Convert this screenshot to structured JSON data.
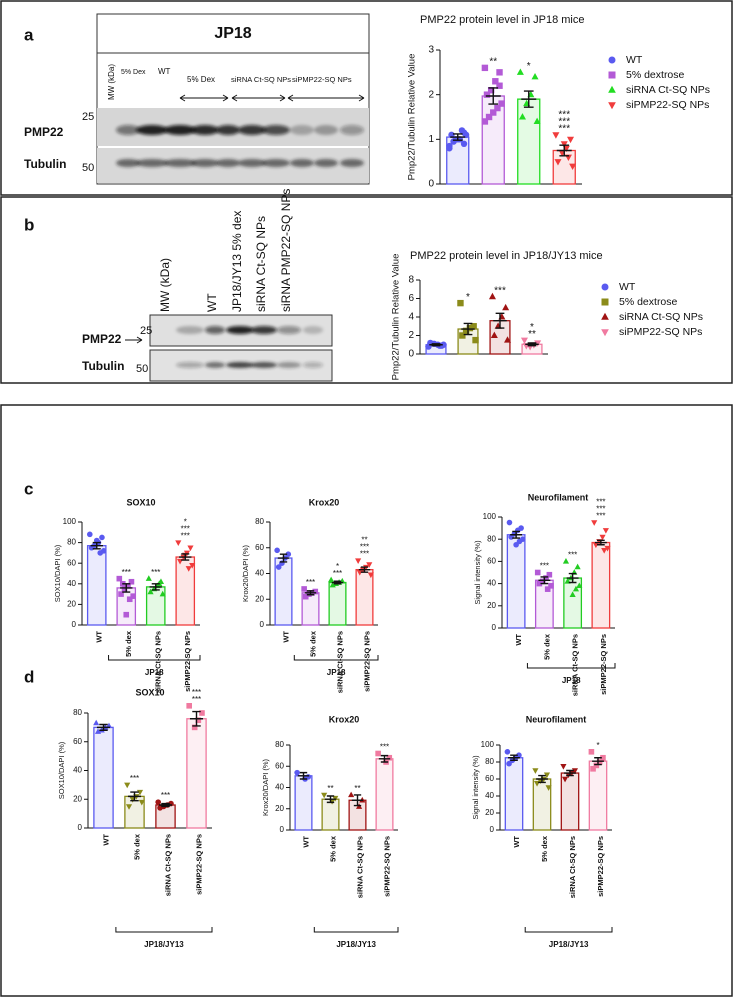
{
  "panels": [
    "a",
    "b",
    "c",
    "d"
  ],
  "blot_a": {
    "title": "JP18",
    "mw": "MW (kDa)",
    "lanes": [
      "5% Dex",
      "WT",
      "5% Dex",
      "siRNA Ct-SQ NPs",
      "siPMP22-SQ NPs"
    ],
    "rows": [
      "PMP22",
      "Tubulin"
    ],
    "markers": [
      "25",
      "50"
    ]
  },
  "blot_b": {
    "lanes": [
      "MW (kDa)",
      "WT",
      "JP18/JY13 5% dex",
      "siRNA Ct-SQ NPs",
      "siRNA PMP22-SQ NPs"
    ],
    "rows": [
      "PMP22",
      "Tubulin"
    ],
    "markers": [
      "25",
      "50"
    ]
  },
  "chart_data": [
    {
      "type": "bar",
      "title": "PMP22 protein level in JP18 mice",
      "ylabel": "Pmp22/Tubulin Relative Value",
      "legend": true,
      "categories": [
        "WT",
        "5% dextrose",
        "siRNA Ct-SQ NPs",
        "siPMP22-SQ NPs"
      ],
      "colors": [
        "#5a5af0",
        "#b35ad6",
        "#22dd22",
        "#f03c3c"
      ],
      "markers": [
        "circle",
        "square",
        "triangle",
        "down"
      ],
      "values": [
        1.05,
        1.97,
        1.9,
        0.75
      ],
      "errors": [
        0.07,
        0.18,
        0.18,
        0.12
      ],
      "points": [
        [
          0.8,
          0.9,
          1.0,
          1.0,
          1.1,
          1.1,
          1.2,
          1.0,
          0.95,
          0.85,
          1.15
        ],
        [
          2.6,
          2.5,
          2.3,
          2.1,
          2.0,
          1.8,
          1.7,
          1.6,
          1.5,
          1.4,
          2.2
        ],
        [
          2.5,
          2.4,
          2.0,
          1.8,
          1.5,
          1.4
        ],
        [
          1.1,
          1.0,
          0.8,
          0.7,
          0.5,
          0.4,
          0.6,
          0.9
        ]
      ],
      "stars": [
        [],
        [
          {
            "label": "**",
            "color": "#5a5af0"
          }
        ],
        [
          {
            "label": "*",
            "color": "#5a5af0"
          }
        ],
        [
          {
            "label": "***",
            "color": "#5a5af0"
          },
          {
            "label": "***",
            "color": "#22dd22"
          },
          {
            "label": "***",
            "color": "#b35ad6"
          }
        ]
      ],
      "ylim": [
        0,
        3
      ],
      "yticks": [
        0,
        1,
        2,
        3
      ]
    },
    {
      "type": "bar",
      "title": "PMP22 protein level in JP18/JY13 mice",
      "ylabel": "Pmp22/Tubulin Relative Value",
      "legend": true,
      "categories": [
        "WT",
        "5% dextrose",
        "siRNA Ct-SQ NPs",
        "siPMP22-SQ NPs"
      ],
      "colors": [
        "#5a5af0",
        "#8b8b1a",
        "#a01414",
        "#f07aa0"
      ],
      "markers": [
        "circle",
        "square",
        "triangle",
        "down"
      ],
      "values": [
        1.0,
        2.7,
        3.6,
        1.05
      ],
      "errors": [
        0.1,
        0.6,
        0.8,
        0.15
      ],
      "points": [
        [
          0.8,
          0.9,
          1.0,
          1.1,
          1.2,
          1.0,
          0.9
        ],
        [
          5.5,
          3.0,
          2.8,
          2.5,
          2.0,
          1.5
        ],
        [
          6.2,
          5.0,
          4.0,
          3.0,
          2.0,
          1.5
        ],
        [
          1.5,
          1.2,
          1.0,
          0.8,
          0.9
        ]
      ],
      "stars": [
        [],
        [
          {
            "label": "*",
            "color": "#222222"
          }
        ],
        [
          {
            "label": "***",
            "color": "#1a1a70"
          }
        ],
        [
          {
            "label": "**",
            "color": "#a01414"
          },
          {
            "label": "*",
            "color": "#22aa22"
          }
        ]
      ],
      "ylim": [
        0,
        8
      ],
      "yticks": [
        0,
        2,
        4,
        6,
        8
      ]
    },
    {
      "type": "bar",
      "title": "SOX10",
      "ylabel": "SOX10/DAPI (%)",
      "group": "JP18",
      "categories": [
        "WT",
        "5% dex",
        "siRNA Ct-SQ NPs",
        "siPMP22-SQ NPs"
      ],
      "colors": [
        "#5a5af0",
        "#b35ad6",
        "#22cc22",
        "#f03c3c"
      ],
      "markers": [
        "circle",
        "square",
        "triangle",
        "down"
      ],
      "values": [
        77,
        36,
        37,
        66
      ],
      "errors": [
        3,
        4,
        3,
        3
      ],
      "points": [
        [
          88,
          85,
          80,
          78,
          75,
          72,
          70,
          82,
          76
        ],
        [
          45,
          42,
          38,
          35,
          30,
          28,
          25,
          10,
          40
        ],
        [
          45,
          42,
          38,
          35,
          32,
          30,
          40
        ],
        [
          80,
          75,
          70,
          66,
          62,
          58,
          55,
          68
        ]
      ],
      "stars": [
        [],
        [
          {
            "label": "***",
            "color": "#5a5af0"
          }
        ],
        [
          {
            "label": "***",
            "color": "#5a5af0"
          }
        ],
        [
          {
            "label": "***",
            "color": "#5a5af0"
          },
          {
            "label": "***",
            "color": "#22cc22"
          },
          {
            "label": "*",
            "color": "#b35ad6"
          }
        ]
      ],
      "ylim": [
        0,
        100
      ],
      "yticks": [
        0,
        20,
        40,
        60,
        80,
        100
      ]
    },
    {
      "type": "bar",
      "title": "Krox20",
      "ylabel": "Krox20/DAPI (%)",
      "group": "JP18",
      "categories": [
        "WT",
        "5% dex",
        "siRNA Ct-SQ NPs",
        "siPMP22-SQ NPs"
      ],
      "colors": [
        "#5a5af0",
        "#b35ad6",
        "#22cc22",
        "#f03c3c"
      ],
      "markers": [
        "circle",
        "square",
        "triangle",
        "down"
      ],
      "values": [
        52,
        25,
        33,
        43
      ],
      "errors": [
        3,
        1.5,
        1,
        2
      ],
      "points": [
        [
          58,
          55,
          52,
          48,
          45
        ],
        [
          28,
          26,
          25,
          24,
          22
        ],
        [
          35,
          34,
          33,
          32,
          31
        ],
        [
          50,
          47,
          45,
          43,
          41,
          39
        ]
      ],
      "stars": [
        [],
        [
          {
            "label": "***",
            "color": "#5a5af0"
          }
        ],
        [
          {
            "label": "***",
            "color": "#5a5af0"
          },
          {
            "label": "*",
            "color": "#b35ad6"
          }
        ],
        [
          {
            "label": "***",
            "color": "#b35ad6"
          },
          {
            "label": "***",
            "color": "#22cc22"
          },
          {
            "label": "**",
            "color": "#5a5af0"
          }
        ]
      ],
      "ylim": [
        0,
        80
      ],
      "yticks": [
        0,
        20,
        40,
        60,
        80
      ]
    },
    {
      "type": "bar",
      "title": "Neurofilament",
      "ylabel": "Signal intensity (%)",
      "group": "JP18",
      "categories": [
        "WT",
        "5% dex",
        "siRNA Ct-SQ NPs",
        "siPMP22-SQ NPs"
      ],
      "colors": [
        "#5a5af0",
        "#b35ad6",
        "#22cc22",
        "#f03c3c"
      ],
      "markers": [
        "circle",
        "square",
        "triangle",
        "down"
      ],
      "values": [
        84,
        43,
        45,
        77
      ],
      "errors": [
        3,
        3,
        4,
        2
      ],
      "points": [
        [
          95,
          90,
          88,
          85,
          82,
          80,
          78,
          75
        ],
        [
          50,
          48,
          45,
          42,
          40,
          38,
          35
        ],
        [
          60,
          55,
          50,
          45,
          42,
          38,
          35,
          30
        ],
        [
          95,
          88,
          82,
          78,
          75,
          72,
          70
        ]
      ],
      "stars": [
        [],
        [
          {
            "label": "***",
            "color": "#5a5af0"
          }
        ],
        [
          {
            "label": "***",
            "color": "#5a5af0"
          }
        ],
        [
          {
            "label": "***",
            "color": "#5a5af0"
          },
          {
            "label": "***",
            "color": "#22cc22"
          },
          {
            "label": "***",
            "color": "#b35ad6"
          }
        ]
      ],
      "ylim": [
        0,
        100
      ],
      "yticks": [
        0,
        20,
        40,
        60,
        80,
        100
      ]
    },
    {
      "type": "bar",
      "title": "SOX10",
      "ylabel": "SOX10/DAPI (%)",
      "group": "JP18/JY13",
      "categories": [
        "WT",
        "5% dex",
        "siRNA Ct-SQ NPs",
        "siPMP22-SQ NPs"
      ],
      "colors": [
        "#5a5af0",
        "#8b8b1a",
        "#a01414",
        "#f07aa0"
      ],
      "markers": [
        "triangle",
        "down",
        "circle",
        "square"
      ],
      "values": [
        70,
        22,
        16,
        76
      ],
      "errors": [
        2,
        3,
        1,
        5
      ],
      "points": [
        [
          73,
          71,
          70,
          68,
          67
        ],
        [
          30,
          25,
          22,
          20,
          15,
          18
        ],
        [
          18,
          17,
          16,
          15,
          14
        ],
        [
          85,
          80,
          75,
          70
        ]
      ],
      "stars": [
        [],
        [
          {
            "label": "***",
            "color": "#5a5af0"
          }
        ],
        [
          {
            "label": "***",
            "color": "#5a5af0"
          }
        ],
        [
          {
            "label": "***",
            "color": "#8b8b1a"
          },
          {
            "label": "***",
            "color": "#a01414"
          }
        ]
      ],
      "ylim": [
        0,
        80
      ],
      "yticks": [
        0,
        20,
        40,
        60,
        80
      ]
    },
    {
      "type": "bar",
      "title": "Krox20",
      "ylabel": "Krox20/DAPI (%)",
      "group": "JP18/JY13",
      "categories": [
        "WT",
        "5% dex",
        "siRNA Ct-SQ NPs",
        "siPMP22-SQ NPs"
      ],
      "colors": [
        "#5a5af0",
        "#8b8b1a",
        "#a01414",
        "#f07aa0"
      ],
      "markers": [
        "circle",
        "down",
        "triangle",
        "square"
      ],
      "values": [
        51,
        29,
        28,
        67
      ],
      "errors": [
        3,
        3,
        5,
        3
      ],
      "points": [
        [
          54,
          50,
          48
        ],
        [
          33,
          30,
          27
        ],
        [
          33,
          28,
          22
        ],
        [
          72,
          68,
          64
        ]
      ],
      "stars": [
        [],
        [
          {
            "label": "**",
            "color": "#5a5af0"
          }
        ],
        [
          {
            "label": "**",
            "color": "#5a5af0"
          }
        ],
        [
          {
            "label": "***",
            "color": "#a01414"
          }
        ]
      ],
      "ylim": [
        0,
        80
      ],
      "yticks": [
        0,
        20,
        40,
        60,
        80
      ]
    },
    {
      "type": "bar",
      "title": "Neurofilament",
      "ylabel": "Signal intensity (%)",
      "group": "JP18/JY13",
      "categories": [
        "WT",
        "5% dex",
        "siRNA Ct-SQ NPs",
        "siPMP22-SQ NPs"
      ],
      "colors": [
        "#5a5af0",
        "#8b8b1a",
        "#a01414",
        "#f07aa0"
      ],
      "markers": [
        "circle",
        "down",
        "down",
        "square"
      ],
      "values": [
        85,
        60,
        67,
        81
      ],
      "errors": [
        3,
        4,
        3,
        4
      ],
      "points": [
        [
          92,
          88,
          85,
          82,
          78
        ],
        [
          70,
          65,
          60,
          58,
          55,
          50
        ],
        [
          75,
          70,
          67,
          65,
          60
        ],
        [
          92,
          85,
          80,
          76,
          72
        ]
      ],
      "stars": [
        [],
        [],
        [],
        [
          {
            "label": "*",
            "color": "#a01414"
          }
        ]
      ],
      "ylim": [
        0,
        100
      ],
      "yticks": [
        0,
        20,
        40,
        60,
        80,
        100
      ]
    }
  ]
}
